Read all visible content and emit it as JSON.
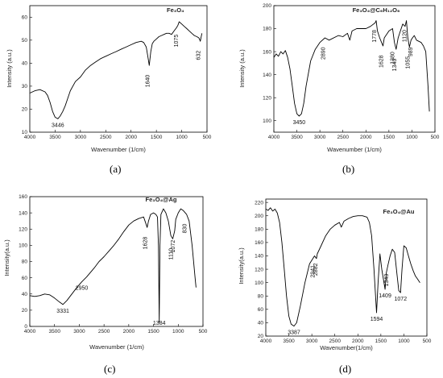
{
  "panels": [
    {
      "caption": "(a)",
      "chart_data": {
        "type": "line",
        "title": "Fe₃O₄",
        "xlabel": "Wavenumber (1/cm)",
        "ylabel": "Intensity (a.u.)",
        "xlim": [
          4000,
          500
        ],
        "ylim": [
          10,
          65
        ],
        "xticks": [
          4000,
          3500,
          3000,
          2500,
          2000,
          1500,
          1000,
          500
        ],
        "yticks": [
          10,
          20,
          30,
          40,
          50,
          60
        ],
        "x": [
          4000,
          3900,
          3800,
          3700,
          3650,
          3600,
          3550,
          3500,
          3446,
          3400,
          3350,
          3300,
          3200,
          3100,
          3000,
          2900,
          2800,
          2700,
          2600,
          2500,
          2400,
          2300,
          2200,
          2100,
          2000,
          1900,
          1800,
          1750,
          1700,
          1670,
          1640,
          1610,
          1580,
          1550,
          1500,
          1450,
          1400,
          1350,
          1300,
          1250,
          1200,
          1150,
          1100,
          1075,
          1050,
          1000,
          950,
          900,
          850,
          800,
          750,
          700,
          660,
          640,
          632,
          620,
          600
        ],
        "y": [
          27,
          28,
          28.5,
          27.5,
          26,
          23,
          19,
          16.5,
          15.8,
          17,
          19,
          21.5,
          28,
          32,
          34,
          37,
          39,
          40.5,
          42,
          43,
          44,
          45,
          46,
          47,
          48,
          49,
          49.5,
          49,
          47,
          43,
          39,
          45,
          48.5,
          49.5,
          50.5,
          51.5,
          52,
          52.5,
          53,
          53,
          52.5,
          54,
          55.5,
          56.5,
          58,
          57,
          56,
          55,
          54,
          53,
          52,
          51.5,
          51,
          50,
          49.5,
          51,
          53
        ],
        "annotations": [
          {
            "label": "3446",
            "x": 3446,
            "y": 15.8
          },
          {
            "label": "1640",
            "x": 1640,
            "y": 39
          },
          {
            "label": "1075",
            "x": 1075,
            "y": 56.5
          },
          {
            "label": "632",
            "x": 632,
            "y": 49.5
          }
        ]
      }
    },
    {
      "caption": "(b)",
      "chart_data": {
        "type": "line",
        "title": "Fe₃O₄@C₆H₁₂O₆",
        "xlabel": "Wavenumber (1/cm)",
        "ylabel": "Intensity (a.u.)",
        "xlim": [
          4000,
          500
        ],
        "ylim": [
          90,
          200
        ],
        "xticks": [
          4000,
          3500,
          3000,
          2500,
          2000,
          1500,
          1000,
          500
        ],
        "yticks": [
          100,
          120,
          140,
          160,
          180,
          200
        ],
        "x": [
          4000,
          3950,
          3900,
          3850,
          3800,
          3750,
          3700,
          3650,
          3600,
          3550,
          3500,
          3450,
          3400,
          3350,
          3300,
          3200,
          3100,
          3000,
          2890,
          2800,
          2600,
          2500,
          2400,
          2350,
          2300,
          2200,
          2000,
          1900,
          1800,
          1778,
          1750,
          1700,
          1660,
          1628,
          1600,
          1500,
          1420,
          1380,
          1343,
          1300,
          1250,
          1200,
          1150,
          1120,
          1090,
          1055,
          1020,
          989,
          950,
          900,
          800,
          750,
          700,
          650,
          620
        ],
        "y": [
          155,
          158,
          156,
          160,
          158,
          161,
          155,
          145,
          130,
          115,
          106,
          104,
          106,
          115,
          130,
          152,
          162,
          168,
          172,
          170,
          174,
          173,
          176,
          170,
          178,
          180,
          180,
          182,
          185,
          187,
          178,
          172,
          168,
          165,
          172,
          178,
          180,
          168,
          162,
          172,
          178,
          184,
          182,
          187,
          172,
          164,
          170,
          172,
          174,
          170,
          168,
          165,
          160,
          130,
          108
        ],
        "annotations": [
          {
            "label": "3450",
            "x": 3450,
            "y": 104
          },
          {
            "label": "2890",
            "x": 2890,
            "y": 172
          },
          {
            "label": "1778",
            "x": 1778,
            "y": 187
          },
          {
            "label": "1628",
            "x": 1628,
            "y": 165
          },
          {
            "label": "1380",
            "x": 1380,
            "y": 168
          },
          {
            "label": "1343",
            "x": 1343,
            "y": 162
          },
          {
            "label": "1120",
            "x": 1120,
            "y": 187
          },
          {
            "label": "1055",
            "x": 1055,
            "y": 164
          },
          {
            "label": "989",
            "x": 989,
            "y": 172
          }
        ]
      }
    },
    {
      "caption": "(c)",
      "chart_data": {
        "type": "line",
        "title": "Fe₃O₄@Ag",
        "xlabel": "Wavenumber (1/cm)",
        "ylabel": "Intensity(a.u.)",
        "xlim": [
          4000,
          500
        ],
        "ylim": [
          0,
          160
        ],
        "xticks": [
          4000,
          3500,
          3000,
          2500,
          2000,
          1500,
          1000,
          500
        ],
        "yticks": [
          0,
          20,
          40,
          60,
          80,
          100,
          120,
          140,
          160
        ],
        "x": [
          4000,
          3900,
          3800,
          3700,
          3600,
          3500,
          3400,
          3331,
          3250,
          3150,
          3050,
          2950,
          2850,
          2700,
          2600,
          2500,
          2400,
          2300,
          2200,
          2100,
          2000,
          1900,
          1800,
          1700,
          1660,
          1628,
          1600,
          1560,
          1500,
          1450,
          1420,
          1400,
          1384,
          1370,
          1350,
          1300,
          1250,
          1200,
          1150,
          1110,
          1072,
          1050,
          1000,
          950,
          900,
          830,
          780,
          720,
          660,
          640
        ],
        "y": [
          38,
          37,
          38,
          40,
          39,
          35,
          30,
          27,
          32,
          40,
          48,
          55,
          61,
          72,
          80,
          86,
          93,
          100,
          108,
          117,
          125,
          130,
          133,
          135,
          128,
          122,
          130,
          138,
          140,
          138,
          135,
          100,
          5,
          100,
          138,
          145,
          140,
          130,
          112,
          108,
          118,
          132,
          140,
          145,
          143,
          138,
          130,
          100,
          60,
          48
        ],
        "annotations": [
          {
            "label": "3331",
            "x": 3331,
            "y": 27
          },
          {
            "label": "2950",
            "x": 2950,
            "y": 55
          },
          {
            "label": "1628",
            "x": 1628,
            "y": 122
          },
          {
            "label": "1384",
            "x": 1384,
            "y": 5
          },
          {
            "label": "1110",
            "x": 1110,
            "y": 108
          },
          {
            "label": "1072",
            "x": 1072,
            "y": 118
          },
          {
            "label": "830",
            "x": 830,
            "y": 138
          }
        ]
      }
    },
    {
      "caption": "(d)",
      "chart_data": {
        "type": "line",
        "title": "Fe₃O₄@Au",
        "xlabel": "Wavenumber(1/cm)",
        "ylabel": "Intensity(a.u.)",
        "xlim": [
          4000,
          500
        ],
        "ylim": [
          20,
          225
        ],
        "xticks": [
          4000,
          3500,
          3000,
          2500,
          2000,
          1500,
          1000,
          500
        ],
        "yticks": [
          20,
          40,
          60,
          80,
          100,
          120,
          140,
          160,
          180,
          200,
          220
        ],
        "x": [
          4000,
          3950,
          3900,
          3850,
          3800,
          3750,
          3700,
          3650,
          3600,
          3550,
          3500,
          3450,
          3387,
          3330,
          3250,
          3150,
          3050,
          2941,
          2900,
          2882,
          2800,
          2700,
          2600,
          2500,
          2400,
          2360,
          2300,
          2200,
          2100,
          2000,
          1900,
          1800,
          1750,
          1700,
          1650,
          1594,
          1560,
          1520,
          1480,
          1409,
          1380,
          1343,
          1300,
          1250,
          1200,
          1150,
          1110,
          1072,
          1040,
          1000,
          950,
          900,
          850,
          800,
          750,
          700,
          650
        ],
        "y": [
          210,
          208,
          212,
          207,
          210,
          204,
          190,
          160,
          120,
          80,
          50,
          38,
          35,
          40,
          65,
          100,
          128,
          140,
          136,
          143,
          155,
          170,
          180,
          186,
          190,
          183,
          192,
          196,
          199,
          200,
          200,
          198,
          190,
          170,
          120,
          55,
          100,
          143,
          120,
          90,
          115,
          127,
          140,
          150,
          145,
          112,
          88,
          85,
          120,
          155,
          152,
          140,
          128,
          118,
          110,
          105,
          100
        ],
        "annotations": [
          {
            "label": "3387",
            "x": 3387,
            "y": 35
          },
          {
            "label": "2941",
            "x": 2941,
            "y": 140
          },
          {
            "label": "2882",
            "x": 2882,
            "y": 143
          },
          {
            "label": "1594",
            "x": 1594,
            "y": 55
          },
          {
            "label": "1409",
            "x": 1409,
            "y": 90
          },
          {
            "label": "1343",
            "x": 1343,
            "y": 127
          },
          {
            "label": "1072",
            "x": 1072,
            "y": 85
          }
        ]
      }
    }
  ]
}
